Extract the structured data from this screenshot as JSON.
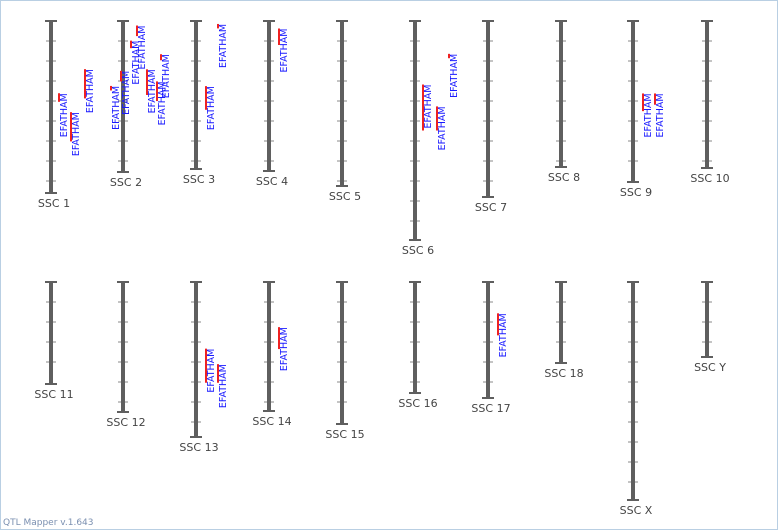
{
  "app": {
    "version_label": "QTL Mapper v.1.643"
  },
  "colors": {
    "chromosome": "#5f5f5f",
    "qtl_bar": "#ee2222",
    "qtl_text": "#1a1aff",
    "chr_label": "#444444"
  },
  "chromosomes": [
    {
      "id": "chr1",
      "label": "SSC 1",
      "row": 0,
      "col": 0,
      "qtls": [
        {
          "label": "EFATHAM",
          "start": 0.42,
          "end": 0.47
        },
        {
          "label": "EFATHAM",
          "start": 0.53,
          "end": 0.7
        },
        {
          "label": "EFATHAM",
          "start": 0.28,
          "end": 0.45
        }
      ]
    },
    {
      "id": "chr2",
      "label": "SSC 2",
      "row": 0,
      "col": 1,
      "qtls": [
        {
          "label": "EFATHAM",
          "start": 0.43,
          "end": 0.46
        },
        {
          "label": "EFATHAM",
          "start": 0.33,
          "end": 0.4
        },
        {
          "label": "EFATHAM",
          "start": 0.13,
          "end": 0.18
        },
        {
          "label": "EFATHAM",
          "start": 0.03,
          "end": 0.1
        },
        {
          "label": "EFATHAM",
          "start": 0.32,
          "end": 0.49
        },
        {
          "label": "EFATHAM",
          "start": 0.4,
          "end": 0.53
        },
        {
          "label": "EFATHAM",
          "start": 0.22,
          "end": 0.26
        }
      ]
    },
    {
      "id": "chr3",
      "label": "SSC 3",
      "row": 0,
      "col": 2,
      "qtls": [
        {
          "label": "EFATHAM",
          "start": 0.44,
          "end": 0.6
        },
        {
          "label": "EFATHAM",
          "start": 0.02,
          "end": 0.05
        }
      ]
    },
    {
      "id": "chr4",
      "label": "SSC 4",
      "row": 0,
      "col": 3,
      "qtls": [
        {
          "label": "EFATHAM",
          "start": 0.05,
          "end": 0.16
        }
      ]
    },
    {
      "id": "chr5",
      "label": "SSC 5",
      "row": 0,
      "col": 4,
      "qtls": []
    },
    {
      "id": "chr6",
      "label": "SSC 6",
      "row": 0,
      "col": 5,
      "qtls": [
        {
          "label": "EFATHAM",
          "start": 0.29,
          "end": 0.5
        },
        {
          "label": "EFATHAM",
          "start": 0.39,
          "end": 0.5
        },
        {
          "label": "EFATHAM",
          "start": 0.15,
          "end": 0.17
        }
      ]
    },
    {
      "id": "chr7",
      "label": "SSC 7",
      "row": 0,
      "col": 6,
      "qtls": []
    },
    {
      "id": "chr8",
      "label": "SSC 8",
      "row": 0,
      "col": 7,
      "qtls": []
    },
    {
      "id": "chr9",
      "label": "SSC 9",
      "row": 0,
      "col": 8,
      "qtls": [
        {
          "label": "EFATHAM",
          "start": 0.45,
          "end": 0.56
        },
        {
          "label": "EFATHAM",
          "start": 0.45,
          "end": 0.52
        }
      ]
    },
    {
      "id": "chr10",
      "label": "SSC 10",
      "row": 0,
      "col": 9,
      "qtls": []
    },
    {
      "id": "chr11",
      "label": "SSC 11",
      "row": 1,
      "col": 0,
      "qtls": []
    },
    {
      "id": "chr12",
      "label": "SSC 12",
      "row": 1,
      "col": 1,
      "qtls": []
    },
    {
      "id": "chr13",
      "label": "SSC 13",
      "row": 1,
      "col": 2,
      "qtls": [
        {
          "label": "EFATHAM",
          "start": 0.43,
          "end": 0.65
        },
        {
          "label": "EFATHAM",
          "start": 0.53,
          "end": 0.65
        }
      ]
    },
    {
      "id": "chr14",
      "label": "SSC 14",
      "row": 1,
      "col": 3,
      "qtls": [
        {
          "label": "EFATHAM",
          "start": 0.35,
          "end": 0.52
        }
      ]
    },
    {
      "id": "chr15",
      "label": "SSC 15",
      "row": 1,
      "col": 4,
      "qtls": []
    },
    {
      "id": "chr16",
      "label": "SSC 16",
      "row": 1,
      "col": 5,
      "qtls": []
    },
    {
      "id": "chr17",
      "label": "SSC 17",
      "row": 1,
      "col": 6,
      "qtls": [
        {
          "label": "EFATHAM",
          "start": 0.27,
          "end": 0.46
        }
      ]
    },
    {
      "id": "chr18",
      "label": "SSC 18",
      "row": 1,
      "col": 7,
      "qtls": []
    },
    {
      "id": "chrX",
      "label": "SSC X",
      "row": 1,
      "col": 8,
      "qtls": []
    },
    {
      "id": "chrY",
      "label": "SSC Y",
      "row": 1,
      "col": 9,
      "qtls": []
    }
  ]
}
